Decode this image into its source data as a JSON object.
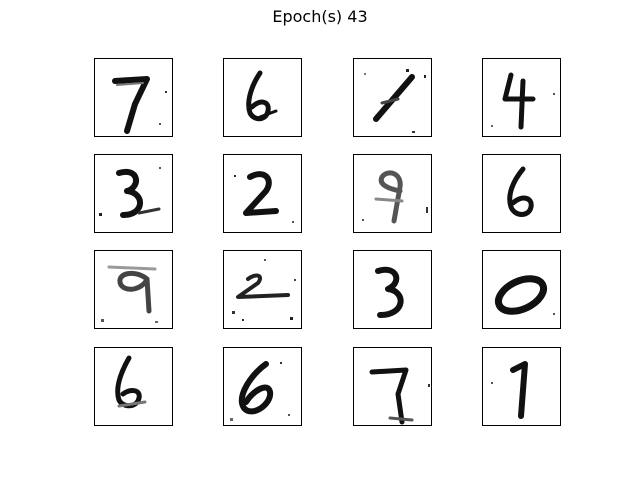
{
  "figure": {
    "title": "Epoch(s) 43"
  },
  "colors": {
    "ink": "#111111",
    "background": "#ffffff",
    "frame": "#000000"
  },
  "grid": {
    "rows": 4,
    "cols": 4,
    "digits": [
      [
        7,
        6,
        1,
        4
      ],
      [
        3,
        2,
        9,
        6
      ],
      [
        9,
        2,
        3,
        0
      ],
      [
        6,
        6,
        7,
        1
      ]
    ]
  }
}
